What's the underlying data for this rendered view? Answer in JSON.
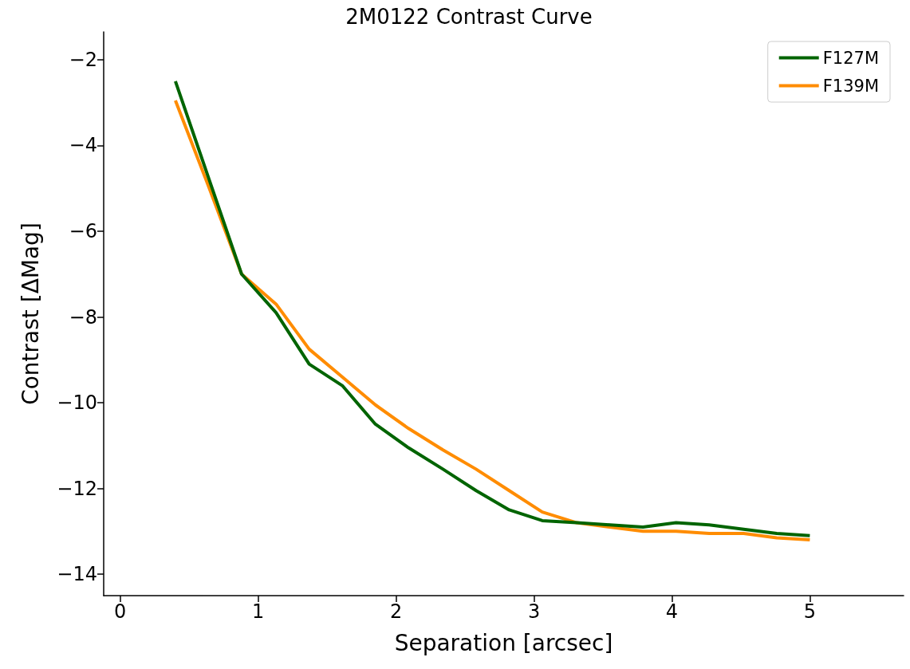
{
  "chart_data": {
    "type": "line",
    "title": "2M0122 Contrast Curve",
    "xlabel": "Separation [arcsec]",
    "ylabel": "Contrast [ΔMag]",
    "x": [
      0.4,
      0.64,
      0.88,
      1.13,
      1.37,
      1.61,
      1.85,
      2.09,
      2.34,
      2.58,
      2.82,
      3.06,
      3.31,
      3.55,
      3.79,
      4.03,
      4.27,
      4.52,
      4.76,
      5.0
    ],
    "series": [
      {
        "name": "F127M",
        "color": "#006400",
        "values": [
          -2.5,
          -4.75,
          -7.0,
          -7.9,
          -9.1,
          -9.6,
          -10.5,
          -11.05,
          -11.55,
          -12.05,
          -12.5,
          -12.75,
          -12.8,
          -12.85,
          -12.9,
          -12.8,
          -12.85,
          -12.95,
          -13.05,
          -13.1
        ]
      },
      {
        "name": "F139M",
        "color": "#ff8c00",
        "values": [
          -2.95,
          -4.95,
          -7.0,
          -7.7,
          -8.75,
          -9.4,
          -10.05,
          -10.6,
          -11.1,
          -11.55,
          -12.05,
          -12.55,
          -12.8,
          -12.9,
          -13.0,
          -13.0,
          -13.05,
          -13.05,
          -13.15,
          -13.2
        ]
      }
    ],
    "xlim": [
      -0.12,
      5.68
    ],
    "xticks": [
      0,
      1,
      2,
      3,
      4,
      5
    ],
    "ylim": [
      -14.5,
      -1.35
    ],
    "yticks": [
      -14,
      -12,
      -10,
      -8,
      -6,
      -4,
      -2
    ],
    "legend": "top right",
    "grid": false,
    "marker": "none",
    "line_style": "solid"
  }
}
